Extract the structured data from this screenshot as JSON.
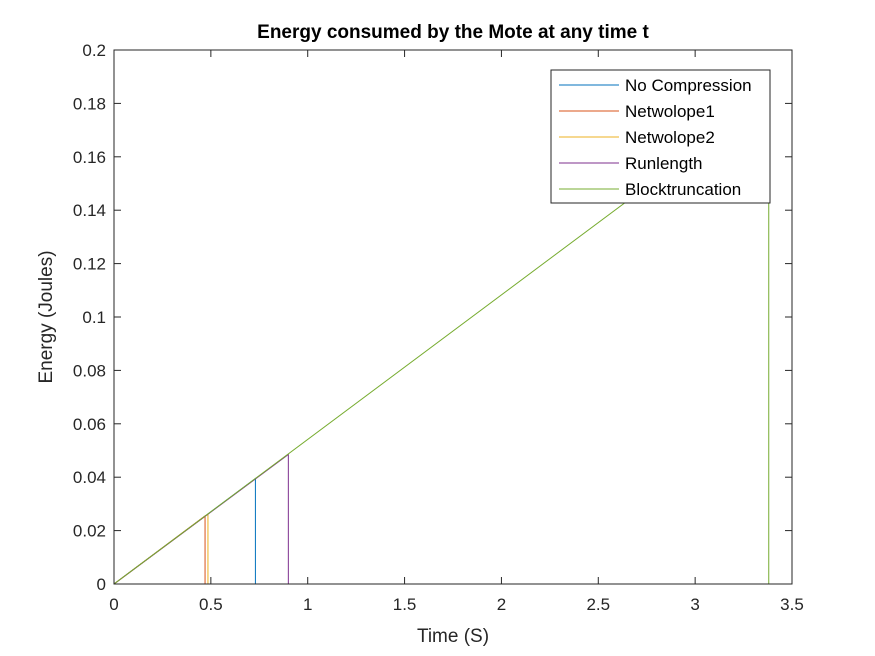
{
  "chart_data": {
    "type": "line",
    "title": "Energy consumed by the Mote at any time t",
    "xlabel": "Time (S)",
    "ylabel": "Energy (Joules)",
    "xlim": [
      0,
      3.5
    ],
    "ylim": [
      0,
      0.2
    ],
    "xticks": [
      0,
      0.5,
      1,
      1.5,
      2,
      2.5,
      3,
      3.5
    ],
    "xtick_labels": [
      "0",
      "0.5",
      "1",
      "1.5",
      "2",
      "2.5",
      "3",
      "3.5"
    ],
    "yticks": [
      0,
      0.02,
      0.04,
      0.06,
      0.08,
      0.1,
      0.12,
      0.14,
      0.16,
      0.18,
      0.2
    ],
    "ytick_labels": [
      "0",
      "0.02",
      "0.04",
      "0.06",
      "0.08",
      "0.1",
      "0.12",
      "0.14",
      "0.16",
      "0.18",
      "0.2"
    ],
    "grid": false,
    "legend_position": "top-right",
    "series": [
      {
        "name": "No Compression",
        "color": "#0072BD",
        "x": [
          0,
          0.73,
          0.73
        ],
        "y": [
          0,
          0.0395,
          0
        ]
      },
      {
        "name": "Netwolope1",
        "color": "#D95319",
        "x": [
          0,
          0.47,
          0.47
        ],
        "y": [
          0,
          0.0255,
          0
        ]
      },
      {
        "name": "Netwolope2",
        "color": "#EDB120",
        "x": [
          0,
          0.485,
          0.485
        ],
        "y": [
          0,
          0.0262,
          0
        ]
      },
      {
        "name": "Runlength",
        "color": "#7E2F8E",
        "x": [
          0,
          0.9,
          0.9
        ],
        "y": [
          0,
          0.0485,
          0
        ]
      },
      {
        "name": "Blocktruncation",
        "color": "#77AC30",
        "x": [
          0,
          3.38,
          3.38
        ],
        "y": [
          0,
          0.183,
          0
        ]
      }
    ]
  }
}
